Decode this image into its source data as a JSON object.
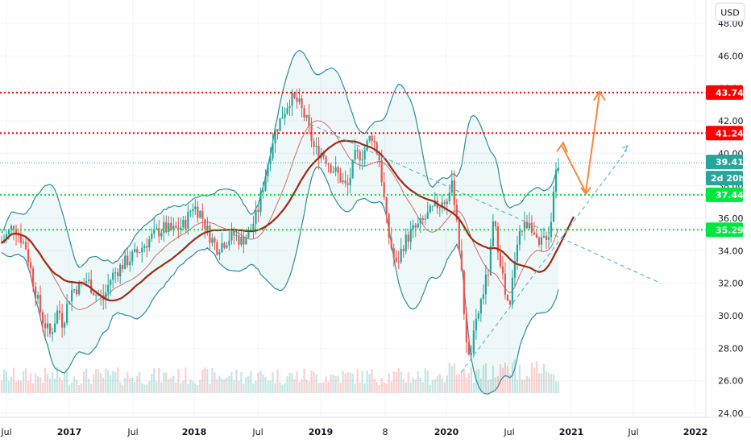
{
  "currency_button": "USD",
  "chart_data": {
    "type": "candlestick",
    "y_axis": {
      "ticks": [
        "24.00",
        "26.00",
        "28.00",
        "30.00",
        "32.00",
        "34.00",
        "36.00",
        "38.00",
        "40.00",
        "42.00",
        "44.00",
        "46.00",
        "48.00"
      ],
      "ylim": [
        24,
        49.3
      ],
      "position": "right"
    },
    "x_axis": {
      "ticks": [
        "Jul",
        "2017",
        "Jul",
        "2018",
        "Jul",
        "2019",
        "8",
        "2020",
        "Jul",
        "2021",
        "Jul",
        "2022"
      ]
    },
    "horizontal_levels": [
      {
        "label": "43.74",
        "value": 43.74,
        "color": "#ff0000",
        "style": "dotted"
      },
      {
        "label": "41.24",
        "value": 41.24,
        "color": "#ff0000",
        "style": "dotted"
      },
      {
        "label": "37.44",
        "value": 37.44,
        "color": "#00e640",
        "style": "dotted"
      },
      {
        "label": "35.29",
        "value": 35.29,
        "color": "#00e640",
        "style": "dotted"
      }
    ],
    "last_price": {
      "label": "39.41",
      "value": 39.41,
      "color": "#26a69a"
    },
    "countdown": {
      "label": "2d 20h",
      "color": "#26a69a"
    },
    "grid": true,
    "indicators": [
      "Bollinger Bands",
      "Moving Average",
      "Volume"
    ],
    "price_path": [
      [
        0,
        34.5
      ],
      [
        3,
        35.6
      ],
      [
        6,
        34.2
      ],
      [
        8,
        31.8
      ],
      [
        10,
        29.8
      ],
      [
        12,
        28.8
      ],
      [
        14,
        30.5
      ],
      [
        15,
        29.5
      ],
      [
        17,
        31.5
      ],
      [
        19,
        31.8
      ],
      [
        21,
        32.2
      ],
      [
        23,
        31.4
      ],
      [
        25,
        31.0
      ],
      [
        27,
        32.4
      ],
      [
        30,
        33.2
      ],
      [
        33,
        33.8
      ],
      [
        36,
        34.6
      ],
      [
        38,
        35.1
      ],
      [
        40,
        35.4
      ],
      [
        42,
        35.2
      ],
      [
        45,
        35.6
      ],
      [
        47,
        36.8
      ],
      [
        49,
        36.3
      ],
      [
        51,
        35.0
      ],
      [
        53,
        34.2
      ],
      [
        55,
        34.6
      ],
      [
        57,
        35.0
      ],
      [
        59,
        34.6
      ],
      [
        61,
        35.1
      ],
      [
        63,
        36.4
      ],
      [
        65,
        38.8
      ],
      [
        67,
        41.2
      ],
      [
        69,
        42.3
      ],
      [
        71,
        43.4
      ],
      [
        73,
        43.1
      ],
      [
        75,
        42.0
      ],
      [
        77,
        40.2
      ],
      [
        79,
        40.0
      ],
      [
        81,
        39.2
      ],
      [
        83,
        38.6
      ],
      [
        85,
        37.8
      ],
      [
        87,
        39.8
      ],
      [
        89,
        40.0
      ],
      [
        91,
        41.2
      ],
      [
        93,
        39.6
      ],
      [
        95,
        35.2
      ],
      [
        97,
        33.0
      ],
      [
        99,
        34.5
      ],
      [
        101,
        35.2
      ],
      [
        103,
        35.6
      ],
      [
        105,
        36.2
      ],
      [
        107,
        36.8
      ],
      [
        109,
        37.0
      ],
      [
        111,
        38.0
      ],
      [
        112,
        36.0
      ],
      [
        113,
        33.0
      ],
      [
        114,
        29.5
      ],
      [
        115,
        27.2
      ],
      [
        116,
        28.5
      ],
      [
        118,
        31.0
      ],
      [
        120,
        33.0
      ],
      [
        121,
        35.8
      ],
      [
        122,
        34.5
      ],
      [
        123,
        33.0
      ],
      [
        124,
        31.0
      ],
      [
        125,
        30.2
      ],
      [
        126,
        33.0
      ],
      [
        127,
        35.0
      ],
      [
        129,
        35.6
      ],
      [
        130,
        36.0
      ],
      [
        131,
        35.0
      ],
      [
        132,
        34.0
      ],
      [
        133,
        34.6
      ],
      [
        134,
        35.0
      ],
      [
        135,
        35.2
      ],
      [
        136,
        38.5
      ],
      [
        137,
        39.41
      ]
    ],
    "annotations": [
      {
        "type": "trendline",
        "color": "#5fbac8",
        "style": "dashed",
        "from": [
          "2018-10",
          41.8
        ],
        "to": [
          "2021-09",
          32.0
        ]
      },
      {
        "type": "trendline",
        "color": "#5fbac8",
        "style": "dashed",
        "from": [
          "2019-12",
          26.5
        ],
        "to": [
          "2021-04",
          40.2
        ]
      },
      {
        "type": "projection_path",
        "color": "#f6883f",
        "points": [
          [
            40.5,
            41.2
          ],
          [
            37.6
          ],
          [
            43.7
          ]
        ]
      }
    ]
  }
}
